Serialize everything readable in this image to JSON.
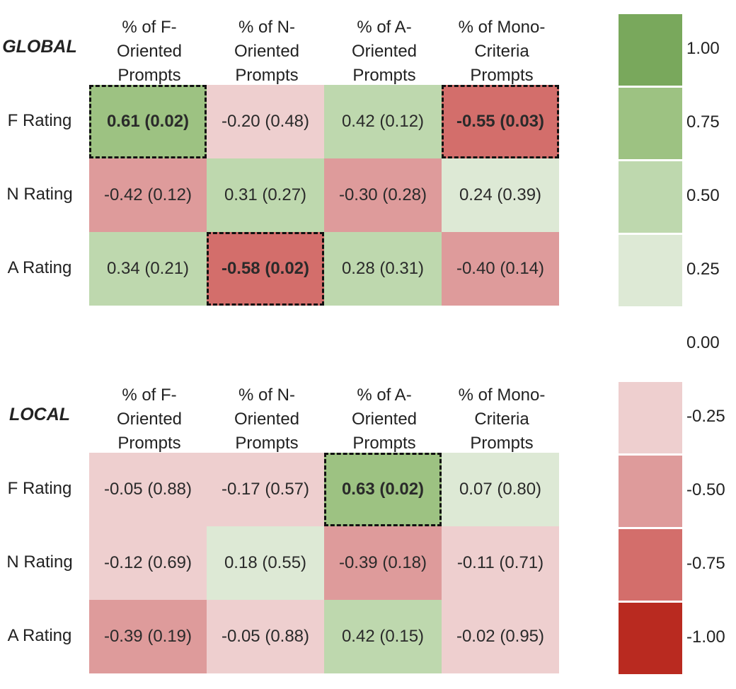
{
  "chart_data": [
    {
      "type": "heatmap",
      "title": "GLOBAL",
      "columns": [
        "% of F-\nOriented\nPrompts",
        "% of N-\nOriented\nPrompts",
        "% of A-\nOriented\nPrompts",
        "% of Mono-\nCriteria\nPrompts"
      ],
      "rows": [
        "F Rating",
        "N Rating",
        "A Rating"
      ],
      "values": [
        [
          0.61,
          -0.2,
          0.42,
          -0.55
        ],
        [
          -0.42,
          0.31,
          -0.3,
          0.24
        ],
        [
          0.34,
          -0.58,
          0.28,
          -0.4
        ]
      ],
      "p_values": [
        [
          0.02,
          0.48,
          0.12,
          0.03
        ],
        [
          0.12,
          0.27,
          0.28,
          0.39
        ],
        [
          0.21,
          0.02,
          0.31,
          0.14
        ]
      ],
      "labels": [
        [
          "0.61 (0.02)",
          "-0.20 (0.48)",
          "0.42 (0.12)",
          "-0.55 (0.03)"
        ],
        [
          "-0.42 (0.12)",
          "0.31 (0.27)",
          "-0.30 (0.28)",
          "0.24 (0.39)"
        ],
        [
          "0.34 (0.21)",
          "-0.58 (0.02)",
          "0.28 (0.31)",
          "-0.40 (0.14)"
        ]
      ],
      "significant": [
        [
          true,
          false,
          false,
          true
        ],
        [
          false,
          false,
          false,
          false
        ],
        [
          false,
          true,
          false,
          false
        ]
      ]
    },
    {
      "type": "heatmap",
      "title": "LOCAL",
      "columns": [
        "% of F-\nOriented\nPrompts",
        "% of N-\nOriented\nPrompts",
        "% of A-\nOriented\nPrompts",
        "% of Mono-\nCriteria\nPrompts"
      ],
      "rows": [
        "F Rating",
        "N Rating",
        "A Rating"
      ],
      "values": [
        [
          -0.05,
          -0.17,
          0.63,
          0.07
        ],
        [
          -0.12,
          0.18,
          -0.39,
          -0.11
        ],
        [
          -0.39,
          -0.05,
          0.42,
          -0.02
        ]
      ],
      "p_values": [
        [
          0.88,
          0.57,
          0.02,
          0.8
        ],
        [
          0.69,
          0.55,
          0.18,
          0.71
        ],
        [
          0.19,
          0.88,
          0.15,
          0.95
        ]
      ],
      "labels": [
        [
          "-0.05 (0.88)",
          "-0.17 (0.57)",
          "0.63 (0.02)",
          "0.07 (0.80)"
        ],
        [
          "-0.12 (0.69)",
          "0.18 (0.55)",
          "-0.39 (0.18)",
          "-0.11 (0.71)"
        ],
        [
          "-0.39 (0.19)",
          "-0.05 (0.88)",
          "0.42 (0.15)",
          "-0.02 (0.95)"
        ]
      ],
      "significant": [
        [
          false,
          false,
          true,
          false
        ],
        [
          false,
          false,
          false,
          false
        ],
        [
          false,
          false,
          false,
          false
        ]
      ]
    }
  ],
  "colorbar": {
    "ticks": [
      "1.00",
      "0.75",
      "0.50",
      "0.25",
      "0.00",
      "-0.25",
      "-0.50",
      "-0.75",
      "-1.00"
    ],
    "bins": [
      {
        "min": 0.75,
        "max": 1.0,
        "color": "#79a85c"
      },
      {
        "min": 0.5,
        "max": 0.75,
        "color": "#9dc282"
      },
      {
        "min": 0.25,
        "max": 0.5,
        "color": "#bed8ae"
      },
      {
        "min": 0.0,
        "max": 0.25,
        "color": "#dde9d5"
      },
      {
        "min": -0.25,
        "max": 0.0,
        "color": "#eecfcf"
      },
      {
        "min": -0.5,
        "max": -0.25,
        "color": "#de9b9b"
      },
      {
        "min": -0.75,
        "max": -0.5,
        "color": "#d36e6b"
      },
      {
        "min": -1.0,
        "max": -0.75,
        "color": "#b92a20"
      }
    ]
  }
}
